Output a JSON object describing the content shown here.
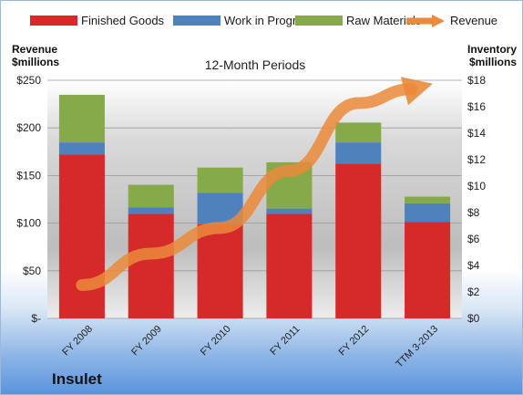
{
  "chart_data": {
    "type": "bar",
    "title": "12-Month Periods",
    "categories": [
      "FY 2008",
      "FY 2009",
      "FY 2010",
      "FY 2011",
      "FY 2012",
      "TTM 3-2013"
    ],
    "series": [
      {
        "name": "Finished Goods",
        "axis": "right",
        "color": "#d62a2a",
        "values": [
          12.4,
          7.9,
          7.1,
          7.9,
          11.7,
          7.3
        ]
      },
      {
        "name": "Work in Progress",
        "axis": "right",
        "color": "#4f81bd",
        "values": [
          0.9,
          0.5,
          2.4,
          0.4,
          1.6,
          1.4
        ]
      },
      {
        "name": "Raw Materials",
        "axis": "right",
        "color": "#86a94a",
        "values": [
          3.6,
          1.7,
          1.9,
          3.5,
          1.5,
          0.5
        ]
      },
      {
        "name": "Revenue",
        "axis": "left",
        "type": "line",
        "color": "#ea8a3a",
        "values": [
          35,
          68,
          95,
          155,
          226,
          245
        ]
      }
    ],
    "left_axis": {
      "label": "Revenue $millions",
      "range": [
        0,
        250
      ],
      "ticks": [
        "$-",
        "$50",
        "$100",
        "$150",
        "$200",
        "$250"
      ]
    },
    "right_axis": {
      "label": "Inventory $millions",
      "range": [
        0,
        18
      ],
      "ticks": [
        "$0",
        "$2",
        "$4",
        "$6",
        "$8",
        "$10",
        "$12",
        "$14",
        "$16",
        "$18"
      ]
    },
    "legend": "top",
    "grid": true
  },
  "labels": {
    "left_axis_line1": "Revenue",
    "left_axis_line2": "$millions",
    "right_axis_line1": "Inventory",
    "right_axis_line2": "$millions",
    "company": "Insulet"
  }
}
